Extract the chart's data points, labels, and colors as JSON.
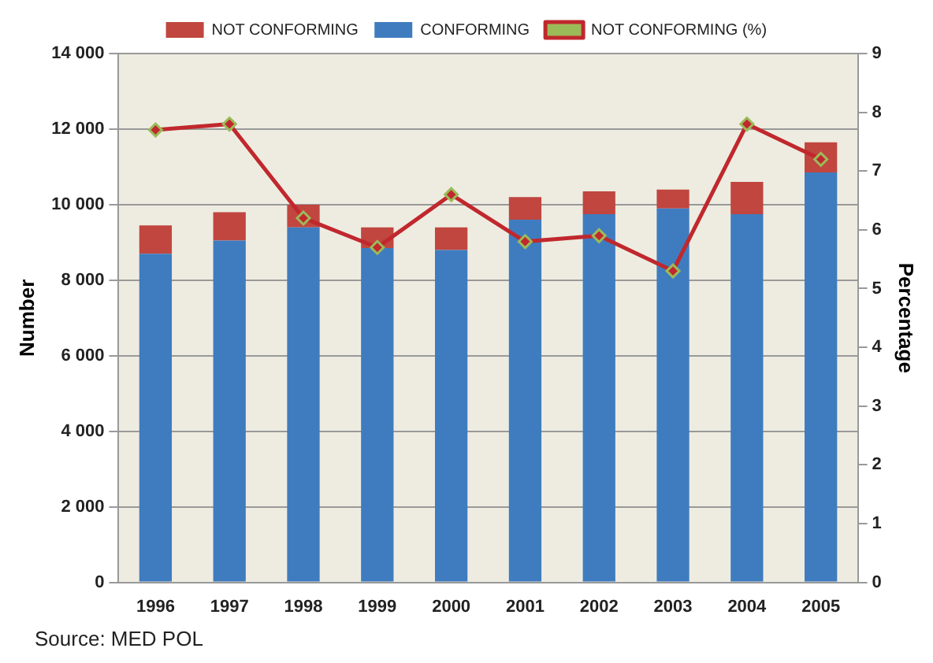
{
  "chart_data": {
    "type": "bar",
    "stacked": true,
    "ylabel": "Number",
    "y2label": "Percentage",
    "categories": [
      "1996",
      "1997",
      "1998",
      "1999",
      "2000",
      "2001",
      "2002",
      "2003",
      "2004",
      "2005"
    ],
    "series": [
      {
        "name": "CONFORMING",
        "color": "#3f7cbf",
        "values": [
          8700,
          9050,
          9400,
          8850,
          8800,
          9600,
          9750,
          9900,
          9750,
          10850
        ]
      },
      {
        "name": "NOT CONFORMING",
        "color": "#c0463f",
        "values": [
          750,
          750,
          600,
          550,
          600,
          600,
          600,
          500,
          850,
          800
        ]
      },
      {
        "name": "NOT CONFORMING (%)",
        "type": "line",
        "axis": "y2",
        "color": "#c0282d",
        "marker": "diamond",
        "values": [
          7.7,
          7.8,
          6.2,
          5.7,
          6.6,
          5.8,
          5.9,
          5.3,
          7.8,
          7.2
        ]
      }
    ],
    "ylim": [
      0,
      14000
    ],
    "yticks": [
      0,
      {
        "value": 2000,
        "label": "2 000"
      },
      {
        "value": 4000,
        "label": "4 000"
      },
      {
        "value": 6000,
        "label": "6 000"
      },
      {
        "value": 8000,
        "label": "8 000"
      },
      {
        "value": 10000,
        "label": "10 000"
      },
      {
        "value": 12000,
        "label": "12 000"
      },
      {
        "value": 14000,
        "label": "14 000"
      }
    ],
    "y2lim": [
      0,
      9
    ],
    "y2ticks": [
      0,
      1,
      2,
      3,
      4,
      5,
      6,
      7,
      8,
      9
    ],
    "grid": "y",
    "legend": "top",
    "annotations": [
      "Source: MED POL"
    ]
  }
}
